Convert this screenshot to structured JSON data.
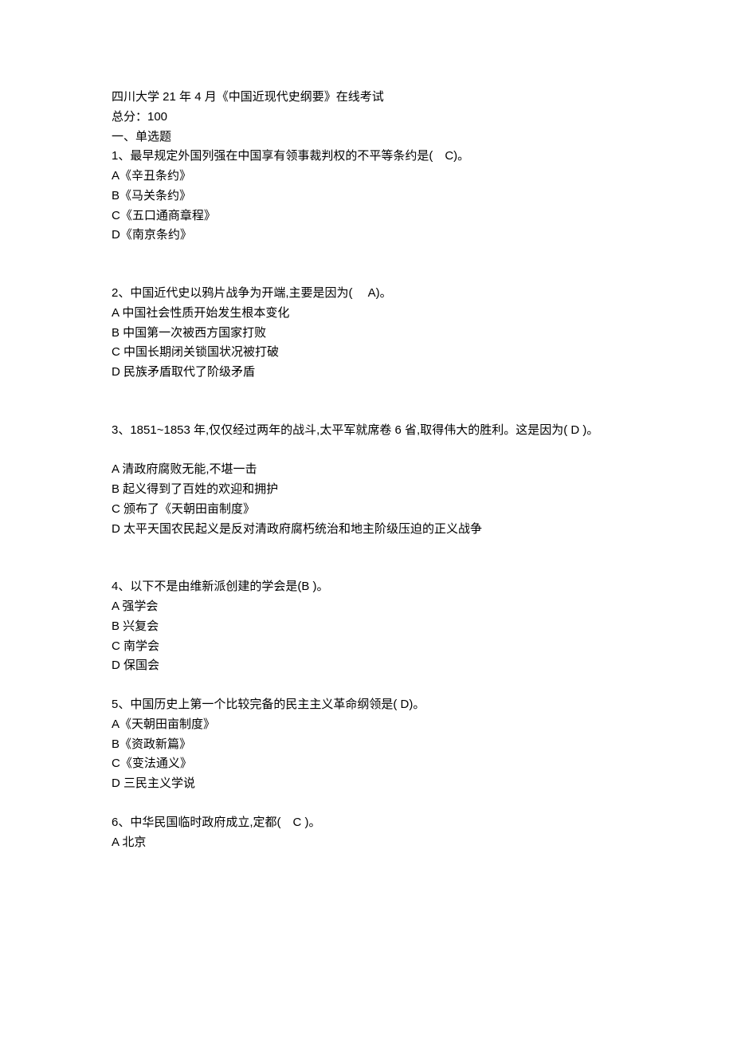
{
  "header": {
    "title": "四川大学 21 年 4 月《中国近现代史纲要》在线考试",
    "total_score": "总分：100",
    "section_title": "一、单选题"
  },
  "questions": [
    {
      "stem": "1、最早规定外国列强在中国享有领事裁判权的不平等条约是(　C)。",
      "options": [
        "A《辛丑条约》",
        "B《马关条约》",
        "C《五口通商章程》",
        "D《南京条约》"
      ],
      "gap": "large"
    },
    {
      "stem": "2、中国近代史以鸦片战争为开端,主要是因为(　 A)。",
      "options": [
        "A 中国社会性质开始发生根本变化",
        "B 中国第一次被西方国家打败",
        "C 中国长期闭关锁国状况被打破",
        "D 民族矛盾取代了阶级矛盾"
      ],
      "gap": "large"
    },
    {
      "stem": "3、1851~1853 年,仅仅经过两年的战斗,太平军就席卷 6 省,取得伟大的胜利。这是因为( D )。",
      "options": [
        "",
        "A 清政府腐败无能,不堪一击",
        "B 起义得到了百姓的欢迎和拥护",
        "C 颁布了《天朝田亩制度》",
        "D 太平天国农民起义是反对清政府腐朽统治和地主阶级压迫的正义战争"
      ],
      "gap": "large"
    },
    {
      "stem": "4、以下不是由维新派创建的学会是(B )。",
      "options": [
        "A 强学会",
        "B 兴复会",
        "C 南学会",
        "D 保国会"
      ],
      "gap": "small"
    },
    {
      "stem": "5、中国历史上第一个比较完备的民主主义革命纲领是( D)。",
      "options": [
        "A《天朝田亩制度》",
        "B《资政新篇》",
        "C《变法通义》",
        "D 三民主义学说"
      ],
      "gap": "small"
    },
    {
      "stem": "6、中华民国临时政府成立,定都(　C )。",
      "options": [
        "A 北京"
      ],
      "gap": "none"
    }
  ]
}
